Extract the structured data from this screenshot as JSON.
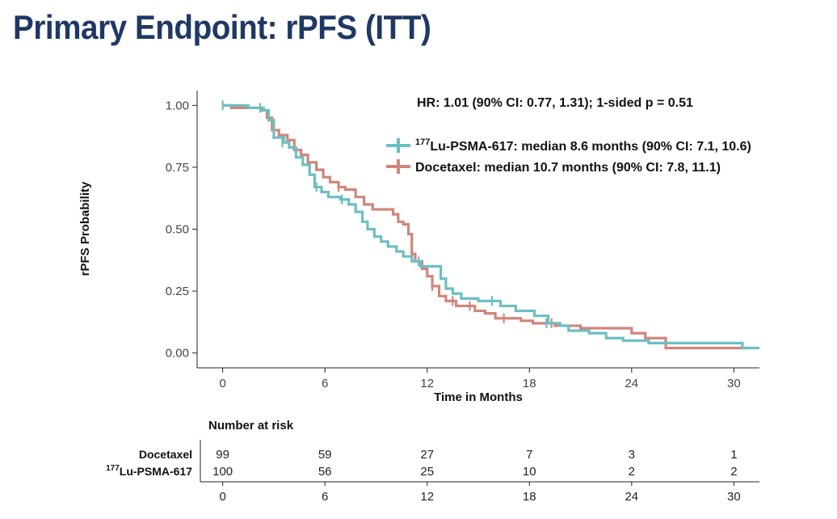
{
  "slide": {
    "title": "Primary Endpoint: rPFS (ITT)"
  },
  "chart_data": {
    "type": "line",
    "subtype": "kaplan-meier",
    "annotation": "HR: 1.01 (90% CI: 0.77, 1.31); 1-sided p = 0.51",
    "xlabel": "Time in Months",
    "ylabel": "rPFS Probability",
    "xlim": [
      -1.5,
      31.5
    ],
    "ylim": [
      -0.06,
      1.06
    ],
    "xticks": [
      "0",
      "6",
      "12",
      "18",
      "24",
      "30"
    ],
    "xtick_values": [
      0,
      6,
      12,
      18,
      24,
      30
    ],
    "yticks": [
      "0.00",
      "0.25",
      "0.50",
      "0.75",
      "1.00"
    ],
    "ytick_values": [
      0,
      0.25,
      0.5,
      0.75,
      1.0
    ],
    "legend_position": "top-right",
    "series": [
      {
        "name": "Docetaxel",
        "legend_label": "Docetaxel: median 10.7 months (90% CI: 7.8, 11.1)",
        "color": "#d0867a",
        "steps": [
          [
            0,
            1.0
          ],
          [
            0.5,
            0.99
          ],
          [
            2.3,
            0.98
          ],
          [
            2.6,
            0.95
          ],
          [
            2.9,
            0.9
          ],
          [
            3.3,
            0.88
          ],
          [
            3.8,
            0.86
          ],
          [
            4.2,
            0.82
          ],
          [
            4.6,
            0.8
          ],
          [
            5.0,
            0.77
          ],
          [
            5.5,
            0.74
          ],
          [
            5.9,
            0.71
          ],
          [
            6.3,
            0.69
          ],
          [
            6.8,
            0.67
          ],
          [
            7.2,
            0.66
          ],
          [
            7.8,
            0.63
          ],
          [
            8.3,
            0.6
          ],
          [
            8.8,
            0.58
          ],
          [
            9.6,
            0.58
          ],
          [
            10.0,
            0.56
          ],
          [
            10.3,
            0.53
          ],
          [
            10.6,
            0.52
          ],
          [
            10.9,
            0.48
          ],
          [
            11.1,
            0.4
          ],
          [
            11.3,
            0.37
          ],
          [
            11.7,
            0.34
          ],
          [
            12.0,
            0.31
          ],
          [
            12.3,
            0.27
          ],
          [
            12.7,
            0.23
          ],
          [
            13.1,
            0.21
          ],
          [
            13.7,
            0.19
          ],
          [
            14.8,
            0.17
          ],
          [
            15.4,
            0.16
          ],
          [
            16.0,
            0.14
          ],
          [
            17.5,
            0.13
          ],
          [
            18.2,
            0.12
          ],
          [
            19.5,
            0.11
          ],
          [
            21.0,
            0.1
          ],
          [
            24.0,
            0.08
          ],
          [
            24.8,
            0.06
          ],
          [
            26.0,
            0.02
          ],
          [
            31.0,
            0.02
          ]
        ],
        "end": 31.0,
        "censors": [
          [
            6.8,
            0.67
          ],
          [
            12.3,
            0.27
          ],
          [
            13.5,
            0.21
          ],
          [
            14.5,
            0.19
          ],
          [
            16.5,
            0.14
          ],
          [
            19.3,
            0.12
          ]
        ]
      },
      {
        "name": "177Lu-PSMA-617",
        "legend_label": "177Lu-PSMA-617: median 8.6 months (90% CI: 7.1, 10.6)",
        "color": "#6cbfc2",
        "steps": [
          [
            0,
            1.0
          ],
          [
            1.5,
            0.99
          ],
          [
            2.4,
            0.98
          ],
          [
            2.7,
            0.94
          ],
          [
            3.0,
            0.87
          ],
          [
            3.6,
            0.85
          ],
          [
            3.9,
            0.83
          ],
          [
            4.3,
            0.79
          ],
          [
            4.7,
            0.76
          ],
          [
            5.1,
            0.72
          ],
          [
            5.4,
            0.67
          ],
          [
            5.8,
            0.65
          ],
          [
            6.2,
            0.63
          ],
          [
            6.9,
            0.62
          ],
          [
            7.4,
            0.6
          ],
          [
            7.8,
            0.57
          ],
          [
            8.2,
            0.53
          ],
          [
            8.5,
            0.5
          ],
          [
            8.9,
            0.47
          ],
          [
            9.3,
            0.45
          ],
          [
            9.7,
            0.43
          ],
          [
            10.2,
            0.41
          ],
          [
            10.6,
            0.39
          ],
          [
            11.1,
            0.37
          ],
          [
            11.6,
            0.35
          ],
          [
            12.8,
            0.3
          ],
          [
            13.1,
            0.26
          ],
          [
            13.5,
            0.24
          ],
          [
            14.0,
            0.22
          ],
          [
            15.0,
            0.21
          ],
          [
            16.3,
            0.19
          ],
          [
            17.2,
            0.17
          ],
          [
            18.3,
            0.15
          ],
          [
            19.1,
            0.12
          ],
          [
            19.8,
            0.11
          ],
          [
            20.3,
            0.09
          ],
          [
            21.5,
            0.08
          ],
          [
            22.5,
            0.06
          ],
          [
            23.5,
            0.05
          ],
          [
            25.0,
            0.04
          ],
          [
            30.5,
            0.02
          ],
          [
            31.5,
            0.02
          ]
        ],
        "end": 31.5,
        "censors": [
          [
            0,
            1.0
          ],
          [
            2.2,
            0.99
          ],
          [
            3.5,
            0.85
          ],
          [
            5.5,
            0.67
          ],
          [
            7.0,
            0.62
          ],
          [
            11.5,
            0.37
          ],
          [
            15.8,
            0.21
          ],
          [
            19.0,
            0.12
          ]
        ]
      }
    ]
  },
  "risk_table": {
    "title": "Number at risk",
    "times": [
      "0",
      "6",
      "12",
      "18",
      "24",
      "30"
    ],
    "time_values": [
      0,
      6,
      12,
      18,
      24,
      30
    ],
    "rows": [
      {
        "label": "Docetaxel",
        "values": [
          "99",
          "59",
          "27",
          "7",
          "3",
          "1"
        ]
      },
      {
        "label": "177Lu-PSMA-617",
        "values": [
          "100",
          "56",
          "25",
          "10",
          "2",
          "2"
        ]
      }
    ]
  }
}
